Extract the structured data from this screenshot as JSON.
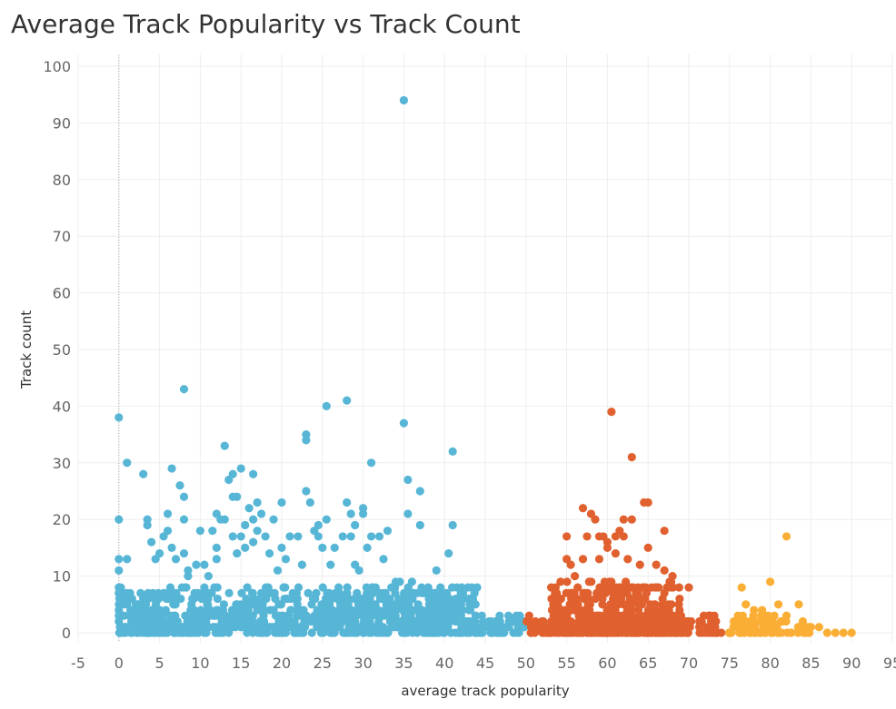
{
  "title": "Average Track Popularity vs Track Count",
  "colors": {
    "low": "#57b6d6",
    "mid": "#e0612f",
    "high": "#fbae35",
    "grid": "#eeeeee",
    "zero_line": "#aaaaaa"
  },
  "chart_data": {
    "type": "scatter",
    "title": "Average Track Popularity vs Track Count",
    "xlabel": "average track popularity",
    "ylabel": "Track count",
    "xlim": [
      -5,
      95
    ],
    "ylim": [
      0,
      100
    ],
    "x_ticks": [
      -5,
      0,
      5,
      10,
      15,
      20,
      25,
      30,
      35,
      40,
      45,
      50,
      55,
      60,
      65,
      70,
      75,
      80,
      85,
      90,
      95
    ],
    "y_ticks": [
      0,
      10,
      20,
      30,
      40,
      50,
      60,
      70,
      80,
      90,
      100
    ],
    "grid": true,
    "legend": "none",
    "series": [
      {
        "color_key": "low",
        "points": [
          [
            0,
            38
          ],
          [
            0,
            20
          ],
          [
            0,
            13
          ],
          [
            0,
            11
          ],
          [
            0,
            8
          ],
          [
            0,
            7
          ],
          [
            0,
            4
          ],
          [
            0,
            2
          ],
          [
            1,
            30
          ],
          [
            1,
            13
          ],
          [
            1,
            6
          ],
          [
            1.5,
            6
          ],
          [
            3,
            28
          ],
          [
            3.5,
            20
          ],
          [
            3.5,
            19
          ],
          [
            4,
            16
          ],
          [
            4.5,
            13
          ],
          [
            5,
            14
          ],
          [
            5.5,
            17
          ],
          [
            6,
            21
          ],
          [
            6,
            18
          ],
          [
            6.5,
            29
          ],
          [
            6.5,
            15
          ],
          [
            7,
            13
          ],
          [
            7.5,
            26
          ],
          [
            8,
            43
          ],
          [
            8,
            24
          ],
          [
            8,
            20
          ],
          [
            8,
            14
          ],
          [
            8.5,
            11
          ],
          [
            8.5,
            10
          ],
          [
            9.5,
            12
          ],
          [
            10,
            18
          ],
          [
            10.5,
            12
          ],
          [
            11,
            10
          ],
          [
            11.5,
            18
          ],
          [
            12,
            21
          ],
          [
            12,
            15
          ],
          [
            12,
            13
          ],
          [
            12.5,
            20
          ],
          [
            13,
            33
          ],
          [
            13,
            20
          ],
          [
            13.5,
            27
          ],
          [
            14,
            28
          ],
          [
            14,
            24
          ],
          [
            14,
            17
          ],
          [
            14.5,
            24
          ],
          [
            14.5,
            14
          ],
          [
            15,
            29
          ],
          [
            15,
            17
          ],
          [
            15.5,
            19
          ],
          [
            15.5,
            15
          ],
          [
            16,
            22
          ],
          [
            16.5,
            28
          ],
          [
            16.5,
            20
          ],
          [
            16.5,
            16
          ],
          [
            17,
            23
          ],
          [
            17,
            18
          ],
          [
            17.5,
            21
          ],
          [
            18,
            17
          ],
          [
            18.5,
            14
          ],
          [
            19,
            20
          ],
          [
            19.5,
            11
          ],
          [
            20,
            23
          ],
          [
            20,
            15
          ],
          [
            20.5,
            13
          ],
          [
            21,
            17
          ],
          [
            22,
            17
          ],
          [
            22.5,
            12
          ],
          [
            23,
            35
          ],
          [
            23,
            34
          ],
          [
            23,
            25
          ],
          [
            23.5,
            23
          ],
          [
            24,
            18
          ],
          [
            24.5,
            19
          ],
          [
            24.5,
            17
          ],
          [
            25,
            15
          ],
          [
            25.5,
            40
          ],
          [
            25.5,
            20
          ],
          [
            26,
            12
          ],
          [
            26.5,
            15
          ],
          [
            27.5,
            17
          ],
          [
            28,
            41
          ],
          [
            28,
            23
          ],
          [
            28.5,
            21
          ],
          [
            28.5,
            17
          ],
          [
            29,
            19
          ],
          [
            29,
            12
          ],
          [
            29.5,
            11
          ],
          [
            30,
            22
          ],
          [
            30,
            21
          ],
          [
            30.5,
            15
          ],
          [
            31,
            30
          ],
          [
            31,
            17
          ],
          [
            32,
            17
          ],
          [
            32.5,
            13
          ],
          [
            33,
            18
          ],
          [
            34,
            9
          ],
          [
            34.5,
            9
          ],
          [
            35,
            37
          ],
          [
            35,
            94
          ],
          [
            35.5,
            27
          ],
          [
            35.5,
            21
          ],
          [
            36,
            9
          ],
          [
            37,
            25
          ],
          [
            37,
            19
          ],
          [
            38,
            8
          ],
          [
            39,
            11
          ],
          [
            39.5,
            8
          ],
          [
            40.5,
            14
          ],
          [
            41,
            19
          ],
          [
            41,
            32
          ],
          [
            42,
            7
          ],
          [
            43,
            6
          ]
        ],
        "dense_fill": {
          "x_from": 0,
          "x_to": 44,
          "y_from": 0,
          "y_to": 8
        },
        "tail_fill": {
          "x_from": 44,
          "x_to": 50,
          "y_from": 0,
          "y_to": 3
        }
      },
      {
        "color_key": "mid",
        "points": [
          [
            55,
            17
          ],
          [
            55,
            13
          ],
          [
            55.5,
            12
          ],
          [
            56,
            10
          ],
          [
            57,
            22
          ],
          [
            57,
            13
          ],
          [
            57.5,
            17
          ],
          [
            58,
            21
          ],
          [
            58.5,
            20
          ],
          [
            59,
            17
          ],
          [
            59,
            13
          ],
          [
            59.5,
            17
          ],
          [
            60,
            16
          ],
          [
            60,
            15
          ],
          [
            60.5,
            39
          ],
          [
            61,
            17
          ],
          [
            61,
            14
          ],
          [
            61.5,
            18
          ],
          [
            62,
            20
          ],
          [
            62,
            17
          ],
          [
            62.5,
            13
          ],
          [
            63,
            31
          ],
          [
            63,
            20
          ],
          [
            64,
            12
          ],
          [
            64.5,
            23
          ],
          [
            65,
            23
          ],
          [
            65,
            15
          ],
          [
            66,
            12
          ],
          [
            67,
            18
          ],
          [
            67,
            11
          ],
          [
            68,
            10
          ],
          [
            70,
            8
          ]
        ],
        "dense_fill": {
          "x_from": 53,
          "x_to": 69,
          "y_from": 0,
          "y_to": 9
        },
        "tail_fill": {
          "x_from": 50,
          "x_to": 74,
          "y_from": 0,
          "y_to": 3
        }
      },
      {
        "color_key": "high",
        "points": [
          [
            76.5,
            8
          ],
          [
            77,
            5
          ],
          [
            78,
            4
          ],
          [
            79,
            4
          ],
          [
            80,
            9
          ],
          [
            80.5,
            3
          ],
          [
            81,
            5
          ],
          [
            82,
            17
          ],
          [
            82,
            3
          ],
          [
            83.5,
            5
          ],
          [
            84,
            2
          ],
          [
            85,
            1
          ],
          [
            86,
            1
          ],
          [
            87,
            0
          ],
          [
            88,
            0
          ],
          [
            89,
            0
          ],
          [
            90,
            0
          ]
        ],
        "dense_fill": {
          "x_from": 74.5,
          "x_to": 82,
          "y_from": 0,
          "y_to": 3
        },
        "tail_fill": {
          "x_from": 82,
          "x_to": 85,
          "y_from": 0,
          "y_to": 1
        }
      }
    ]
  }
}
